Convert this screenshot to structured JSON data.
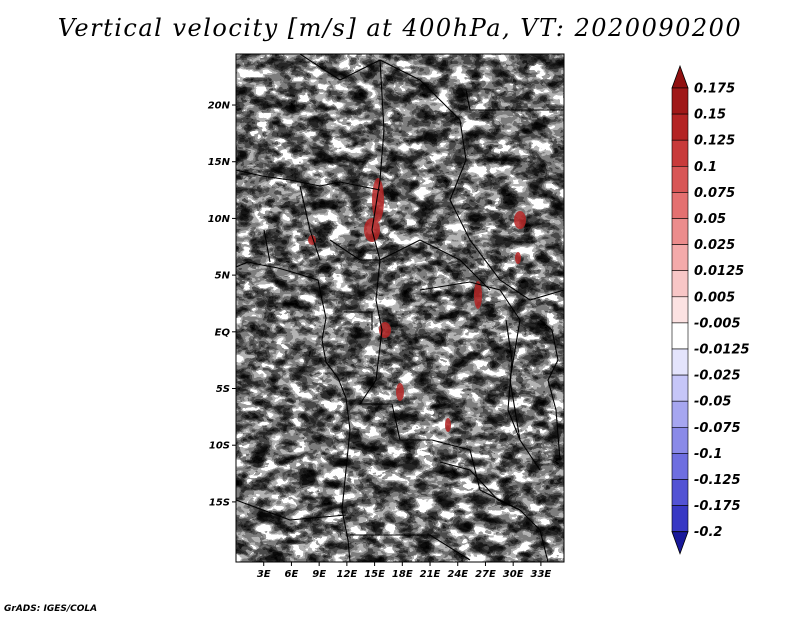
{
  "title": "Vertical velocity [m/s] at 400hPa, VT: 2020090200",
  "credit": "GrADS: IGES/COLA",
  "map": {
    "variable": "Vertical velocity",
    "units": "m/s",
    "level": "400hPa",
    "valid_time": "2020090200",
    "lon_range": [
      0,
      35.5
    ],
    "lat_range": [
      -20.3,
      24.5
    ],
    "lat_ticks": [
      {
        "value": 20,
        "label": "20N"
      },
      {
        "value": 15,
        "label": "15N"
      },
      {
        "value": 10,
        "label": "10N"
      },
      {
        "value": 5,
        "label": "5N"
      },
      {
        "value": 0,
        "label": "EQ"
      },
      {
        "value": -5,
        "label": "5S"
      },
      {
        "value": -10,
        "label": "10S"
      },
      {
        "value": -15,
        "label": "15S"
      }
    ],
    "lon_ticks": [
      {
        "value": 3,
        "label": "3E"
      },
      {
        "value": 6,
        "label": "6E"
      },
      {
        "value": 9,
        "label": "9E"
      },
      {
        "value": 12,
        "label": "12E"
      },
      {
        "value": 15,
        "label": "15E"
      },
      {
        "value": 18,
        "label": "18E"
      },
      {
        "value": 21,
        "label": "21E"
      },
      {
        "value": 24,
        "label": "24E"
      },
      {
        "value": 27,
        "label": "27E"
      },
      {
        "value": 30,
        "label": "30E"
      },
      {
        "value": 33,
        "label": "33E"
      }
    ],
    "colorbar": {
      "levels": [
        {
          "label": "0.175",
          "color": "#a01818"
        },
        {
          "label": "0.15",
          "color": "#b42424"
        },
        {
          "label": "0.125",
          "color": "#c83a3a"
        },
        {
          "label": "0.1",
          "color": "#d85656"
        },
        {
          "label": "0.075",
          "color": "#e47070"
        },
        {
          "label": "0.05",
          "color": "#ec8c8c"
        },
        {
          "label": "0.025",
          "color": "#f4aaaa"
        },
        {
          "label": "0.0125",
          "color": "#f8c6c6"
        },
        {
          "label": "0.005",
          "color": "#fce2e2"
        },
        {
          "label": "-0.005",
          "color": "#ffffff"
        },
        {
          "label": "-0.0125",
          "color": "#e4e4fc"
        },
        {
          "label": "-0.025",
          "color": "#c6c6f8"
        },
        {
          "label": "-0.05",
          "color": "#a6a6f0"
        },
        {
          "label": "-0.075",
          "color": "#8a8ae8"
        },
        {
          "label": "-0.1",
          "color": "#6e6ee0"
        },
        {
          "label": "-0.125",
          "color": "#5252d4"
        },
        {
          "label": "-0.175",
          "color": "#3838c4"
        },
        {
          "label": "-0.2",
          "color": "#2020b0"
        }
      ],
      "over_color": "#901010",
      "under_color": "#18189a"
    }
  }
}
